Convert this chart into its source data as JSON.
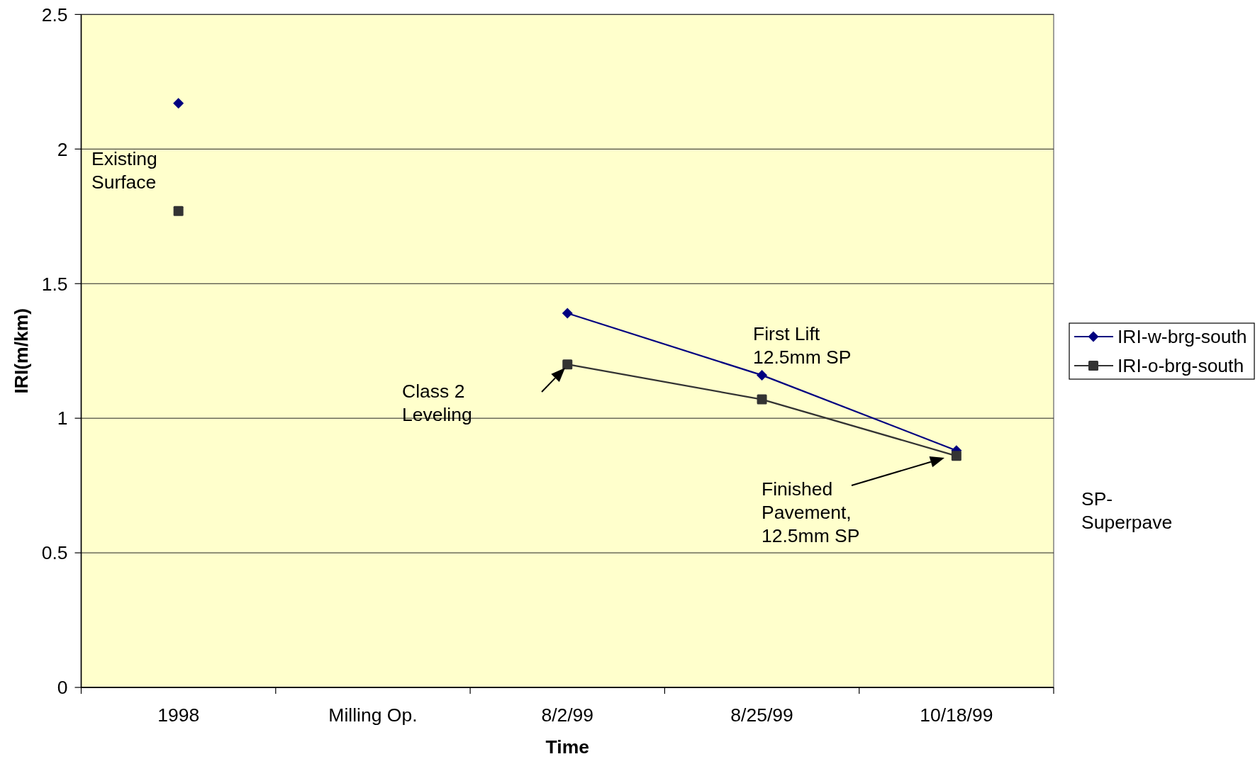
{
  "chart_data": {
    "type": "line",
    "xlabel": "Time",
    "ylabel": "IRI(m/km)",
    "categories": [
      "1998",
      "Milling Op.",
      "8/2/99",
      "8/25/99",
      "10/18/99"
    ],
    "series": [
      {
        "name": "IRI-w-brg-south",
        "color": "#000080",
        "marker": "diamond",
        "values": [
          2.17,
          null,
          1.39,
          1.16,
          0.88
        ]
      },
      {
        "name": "IRI-o-brg-south",
        "color": "#333333",
        "marker": "square",
        "values": [
          1.77,
          null,
          1.2,
          1.07,
          0.86
        ]
      }
    ],
    "ylim": [
      0,
      2.5
    ],
    "yticks": [
      0,
      0.5,
      1,
      1.5,
      2,
      2.5
    ],
    "grid": "y",
    "legend": "right",
    "line_style": "solid",
    "annotations": [
      "Existing\nSurface",
      "Class 2\nLeveling",
      "First Lift\n12.5mm SP",
      "Finished\nPavement,\n12.5mm SP",
      "SP-\nSuperpave"
    ]
  }
}
